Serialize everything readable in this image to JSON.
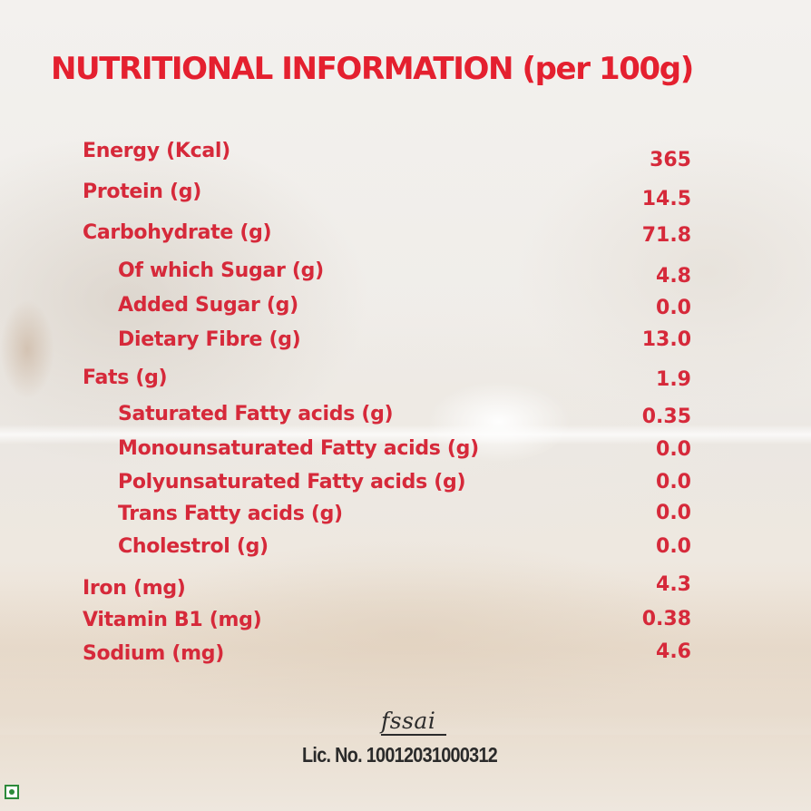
{
  "title": "NUTRITIONAL INFORMATION (per 100g)",
  "nutrients": [
    {
      "label": "Energy (Kcal)",
      "value": "365",
      "level": 0
    },
    {
      "label": "Protein (g)",
      "value": "14.5",
      "level": 0
    },
    {
      "label": "Carbohydrate  (g)",
      "value": "71.8",
      "level": 0
    },
    {
      "label": "Of which Sugar  (g)",
      "value": "4.8",
      "level": 1
    },
    {
      "label": "Added Sugar  (g)",
      "value": "0.0",
      "level": 1
    },
    {
      "label": "Dietary Fibre  (g)",
      "value": "13.0",
      "level": 1
    },
    {
      "label": "Fats  (g)",
      "value": "1.9",
      "level": 0
    },
    {
      "label": "Saturated Fatty acids  (g)",
      "value": "0.35",
      "level": 1
    },
    {
      "label": "Monounsaturated Fatty acids  (g)",
      "value": "0.0",
      "level": 1
    },
    {
      "label": "Polyunsaturated Fatty acids  (g)",
      "value": "0.0",
      "level": 1
    },
    {
      "label": "Trans Fatty acids  (g)",
      "value": "0.0",
      "level": 1
    },
    {
      "label": "Cholestrol  (g)",
      "value": "0.0",
      "level": 1
    },
    {
      "label": "Iron  (mg)",
      "value": "4.3",
      "level": 0
    },
    {
      "label": "Vitamin B1  (mg)",
      "value": "0.38",
      "level": 0
    },
    {
      "label": "Sodium (mg)",
      "value": "4.6",
      "level": 0
    }
  ],
  "certification": {
    "logo_text": "fssai",
    "license": "Lic. No. 10012031000312"
  },
  "icons": {
    "veg_mark": "vegetarian-mark-icon"
  },
  "colors": {
    "title": "#e4202f",
    "text": "#d6293a",
    "license": "#2a2a2a",
    "veg": "#2d8a3a"
  }
}
